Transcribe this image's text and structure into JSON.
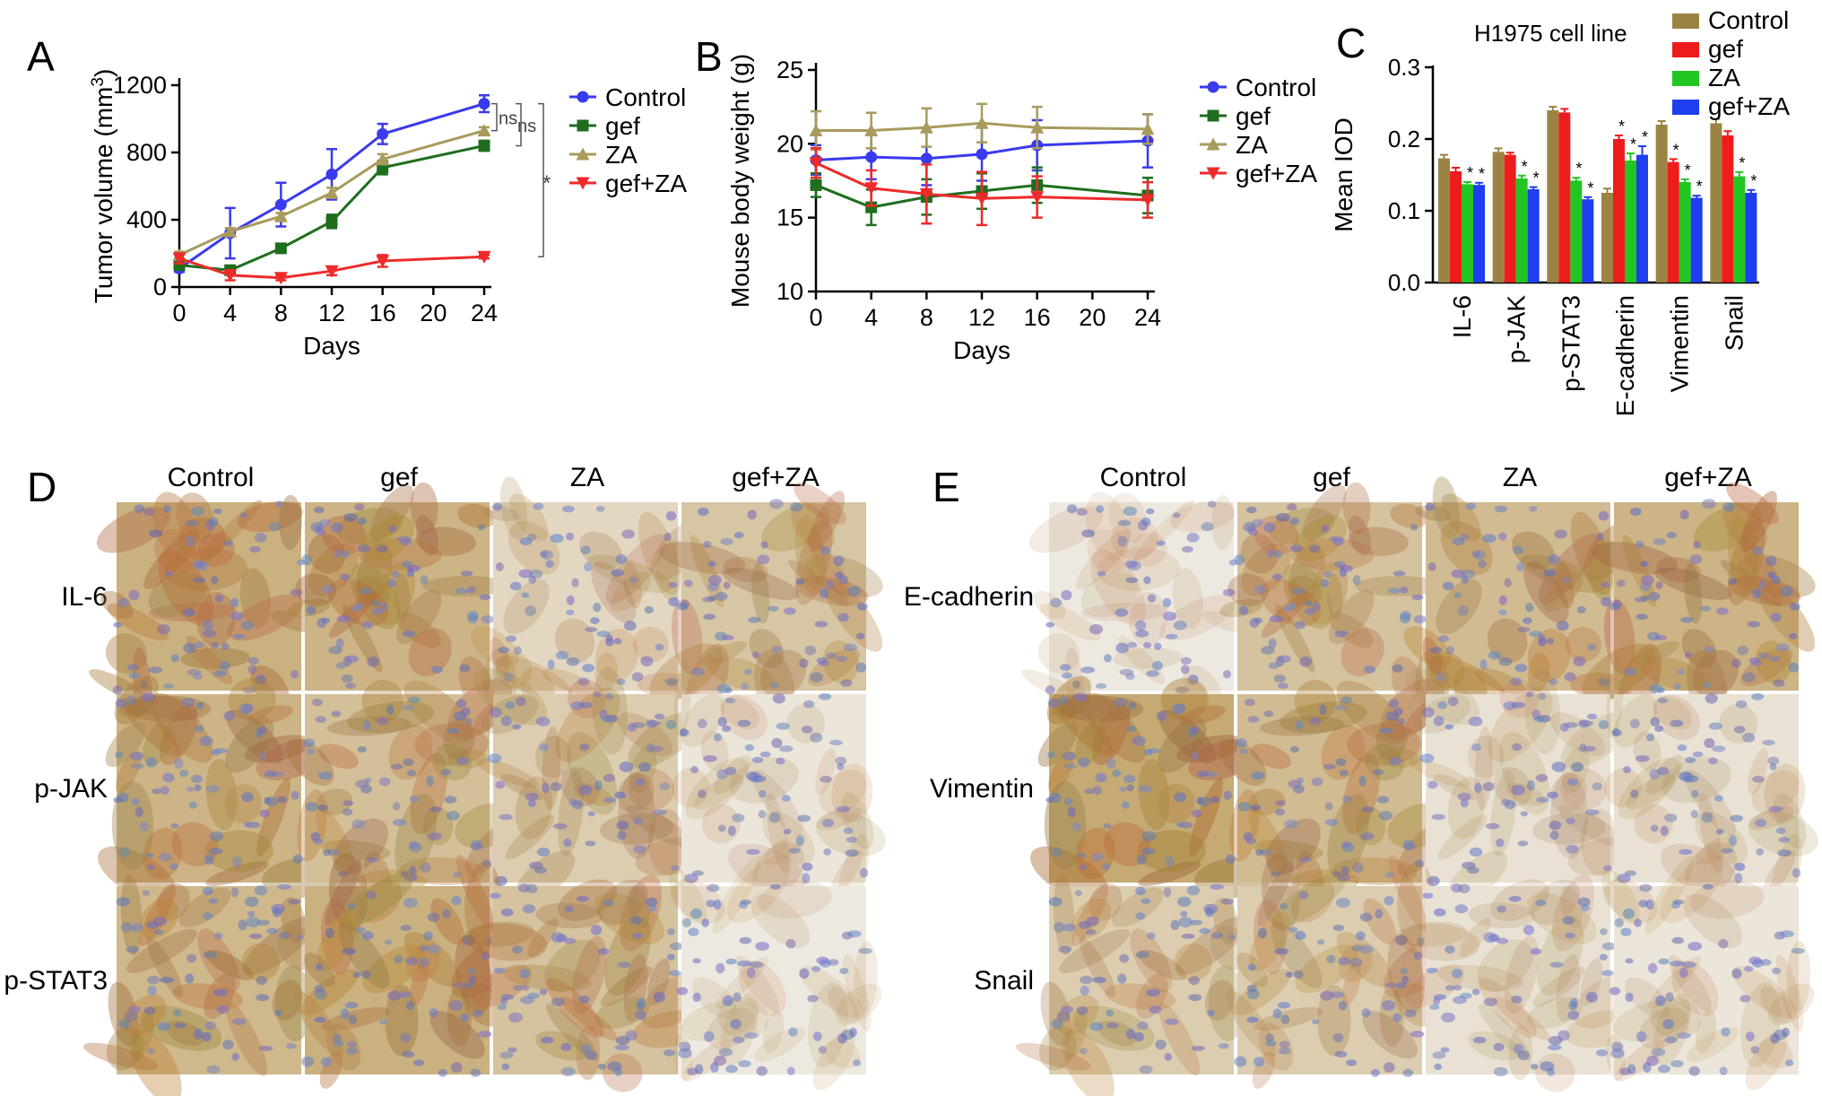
{
  "panels": {
    "A": {
      "letter": "A"
    },
    "B": {
      "letter": "B"
    },
    "C": {
      "letter": "C"
    },
    "D": {
      "letter": "D"
    },
    "E": {
      "letter": "E"
    }
  },
  "colors": {
    "Control": "#3a3aee",
    "gef": "#1e6e1e",
    "ZA": "#a89b5c",
    "gef+ZA": "#ee2a2a",
    "barControl": "#9b8443",
    "barGef": "#ee1c1c",
    "barZA": "#22c622",
    "barGefZA": "#1f3ef0",
    "stain_brown": "#c59a5a",
    "stain_blue": "#7080c0"
  },
  "chart_data": [
    {
      "type": "line",
      "panel": "A",
      "xlabel": "Days",
      "ylabel": "Tumor volume (mm",
      "ylabel_sup": "3",
      "ylabel_end": ")",
      "xticks": [
        0,
        4,
        8,
        12,
        16,
        20,
        24
      ],
      "yticks": [
        0,
        400,
        800,
        1200
      ],
      "xlim": [
        0,
        24
      ],
      "ylim": [
        0,
        1200
      ],
      "series": [
        {
          "name": "Control",
          "x": [
            0,
            4,
            8,
            12,
            16,
            24
          ],
          "y": [
            110,
            320,
            490,
            670,
            910,
            1090
          ],
          "err": [
            20,
            150,
            130,
            150,
            60,
            50
          ],
          "marker": "circle"
        },
        {
          "name": "gef",
          "x": [
            0,
            4,
            8,
            12,
            16,
            24
          ],
          "y": [
            130,
            100,
            230,
            390,
            710,
            840
          ],
          "err": [
            20,
            20,
            15,
            40,
            40,
            30
          ],
          "marker": "square"
        },
        {
          "name": "ZA",
          "x": [
            0,
            4,
            8,
            12,
            16,
            24
          ],
          "y": [
            190,
            330,
            420,
            560,
            760,
            930
          ],
          "err": [
            20,
            20,
            20,
            30,
            30,
            20
          ],
          "marker": "triangle"
        },
        {
          "name": "gef+ZA",
          "x": [
            0,
            4,
            8,
            12,
            16,
            24
          ],
          "y": [
            170,
            70,
            55,
            95,
            155,
            180
          ],
          "err": [
            30,
            30,
            15,
            25,
            35,
            10
          ],
          "marker": "tri-down"
        }
      ],
      "annotations": [
        "ns",
        "ns",
        "*"
      ]
    },
    {
      "type": "line",
      "panel": "B",
      "xlabel": "Days",
      "ylabel": "Mouse body weight (g)",
      "xticks": [
        0,
        4,
        8,
        12,
        16,
        20,
        24
      ],
      "yticks": [
        10,
        15,
        20,
        25
      ],
      "xlim": [
        0,
        24
      ],
      "ylim": [
        10,
        25
      ],
      "series": [
        {
          "name": "Control",
          "x": [
            0,
            4,
            8,
            12,
            16,
            24
          ],
          "y": [
            18.9,
            19.1,
            19.0,
            19.3,
            19.9,
            20.2
          ],
          "err": [
            1.0,
            1.5,
            1.8,
            1.8,
            1.7,
            1.8
          ],
          "marker": "circle"
        },
        {
          "name": "gef",
          "x": [
            0,
            4,
            8,
            12,
            16,
            24
          ],
          "y": [
            17.2,
            15.7,
            16.4,
            16.8,
            17.2,
            16.5
          ],
          "err": [
            0.8,
            1.2,
            1.2,
            1.2,
            1.2,
            1.2
          ],
          "marker": "square"
        },
        {
          "name": "ZA",
          "x": [
            0,
            4,
            8,
            12,
            16,
            24
          ],
          "y": [
            20.9,
            20.9,
            21.1,
            21.4,
            21.1,
            21.0
          ],
          "err": [
            1.3,
            1.2,
            1.3,
            1.3,
            1.4,
            1.0
          ],
          "marker": "triangle"
        },
        {
          "name": "gef+ZA",
          "x": [
            0,
            4,
            8,
            12,
            16,
            24
          ],
          "y": [
            18.7,
            17.0,
            16.6,
            16.3,
            16.4,
            16.2
          ],
          "err": [
            1.0,
            1.2,
            2.0,
            1.8,
            1.4,
            1.2
          ],
          "marker": "tri-down"
        }
      ]
    },
    {
      "type": "bar",
      "panel": "C",
      "title": "H1975 cell line",
      "ylabel": "Mean IOD",
      "categories": [
        "IL-6",
        "p-JAK",
        "p-STAT3",
        "E-cadherin",
        "Vimentin",
        "Snail"
      ],
      "yticks": [
        "0.0",
        "0.1",
        "0.2",
        "0.3"
      ],
      "ylim": [
        0,
        0.3
      ],
      "series": [
        {
          "name": "Control",
          "values": [
            0.173,
            0.182,
            0.24,
            0.125,
            0.22,
            0.222
          ],
          "err": [
            0.005,
            0.005,
            0.005,
            0.006,
            0.005,
            0.006
          ]
        },
        {
          "name": "gef",
          "values": [
            0.155,
            0.178,
            0.237,
            0.2,
            0.168,
            0.205
          ],
          "err": [
            0.005,
            0.003,
            0.005,
            0.005,
            0.004,
            0.006
          ]
        },
        {
          "name": "ZA",
          "values": [
            0.137,
            0.145,
            0.142,
            0.17,
            0.14,
            0.148
          ],
          "err": [
            0.003,
            0.004,
            0.004,
            0.01,
            0.004,
            0.006
          ]
        },
        {
          "name": "gef+ZA",
          "values": [
            0.136,
            0.13,
            0.116,
            0.178,
            0.118,
            0.125
          ],
          "err": [
            0.003,
            0.003,
            0.003,
            0.012,
            0.003,
            0.004
          ]
        }
      ],
      "star": "*"
    }
  ],
  "ihcD": {
    "columns": [
      "Control",
      "gef",
      "ZA",
      "gef+ZA"
    ],
    "rows": [
      "IL-6",
      "p-JAK",
      "p-STAT3"
    ],
    "intensity": [
      [
        0.85,
        0.8,
        0.3,
        0.55
      ],
      [
        0.8,
        0.65,
        0.45,
        0.1
      ],
      [
        0.75,
        0.85,
        0.6,
        0.05
      ]
    ]
  },
  "ihcE": {
    "columns": [
      "Control",
      "gef",
      "ZA",
      "gef+ZA"
    ],
    "rows": [
      "E-cadherin",
      "Vimentin",
      "Snail"
    ],
    "intensity": [
      [
        0.05,
        0.6,
        0.7,
        0.8
      ],
      [
        0.95,
        0.7,
        0.15,
        0.15
      ],
      [
        0.45,
        0.45,
        0.15,
        0.1
      ]
    ]
  }
}
